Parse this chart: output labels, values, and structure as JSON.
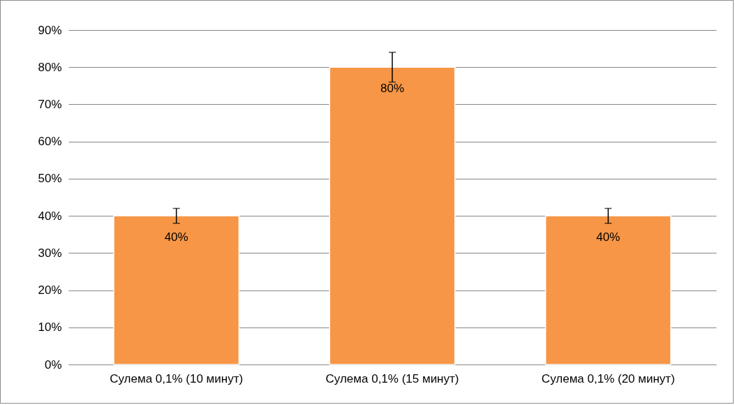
{
  "chart_data": {
    "type": "bar",
    "categories": [
      "Сулема 0,1% (10 минут)",
      "Сулема 0,1% (15 минут)",
      "Сулема 0,1% (20 минут)"
    ],
    "values": [
      40,
      80,
      40
    ],
    "errors": [
      2,
      4,
      2
    ],
    "value_labels": [
      "40%",
      "80%",
      "40%"
    ],
    "color": "#f79646",
    "ylim": [
      0,
      90
    ],
    "yticks": [
      {
        "value": 0,
        "label": "0%"
      },
      {
        "value": 10,
        "label": "10%"
      },
      {
        "value": 20,
        "label": "20%"
      },
      {
        "value": 30,
        "label": "30%"
      },
      {
        "value": 40,
        "label": "40%"
      },
      {
        "value": 50,
        "label": "50%"
      },
      {
        "value": 60,
        "label": "60%"
      },
      {
        "value": 70,
        "label": "70%"
      },
      {
        "value": 80,
        "label": "80%"
      },
      {
        "value": 90,
        "label": "90%"
      }
    ],
    "grid": true
  }
}
